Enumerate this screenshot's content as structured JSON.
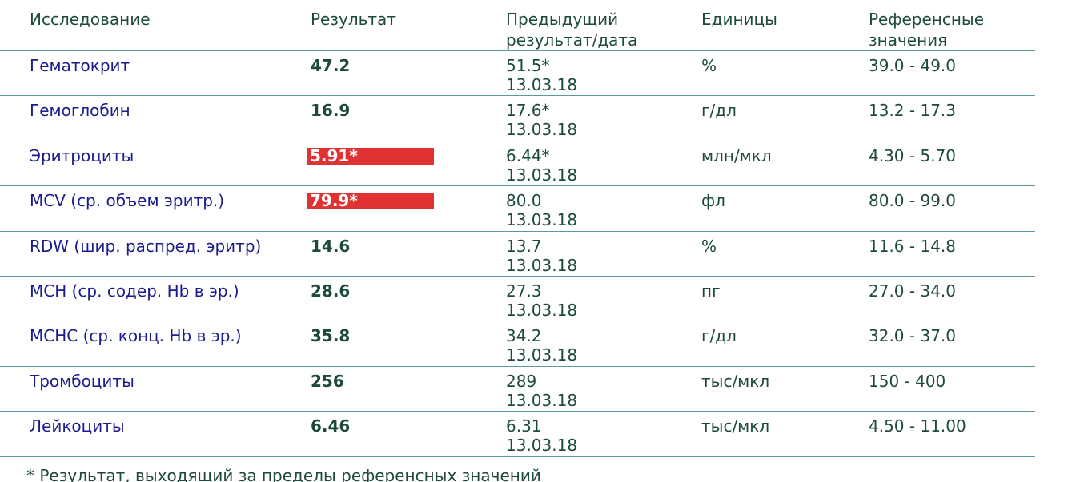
{
  "header": [
    [
      "Исследование"
    ],
    [
      "Результат"
    ],
    [
      "Предыдущий",
      "результат/дата"
    ],
    [
      "Единицы"
    ],
    [
      "Референсные",
      "значения"
    ]
  ],
  "rows": [
    {
      "name": "Гематокрит",
      "result": "47.2",
      "flagged": false,
      "prev": "51.5*",
      "date": "13.03.18",
      "units": "%",
      "ref": "39.0 - 49.0"
    },
    {
      "name": "Гемоглобин",
      "result": "16.9",
      "flagged": false,
      "prev": "17.6*",
      "date": "13.03.18",
      "units": "г/дл",
      "ref": "13.2 - 17.3"
    },
    {
      "name": "Эритроциты",
      "result": "5.91*",
      "flagged": true,
      "prev": "6.44*",
      "date": "13.03.18",
      "units": "млн/мкл",
      "ref": "4.30 - 5.70"
    },
    {
      "name": "MCV (ср. объем эритр.)",
      "result": "79.9*",
      "flagged": true,
      "prev": "80.0",
      "date": "13.03.18",
      "units": "фл",
      "ref": "80.0 - 99.0"
    },
    {
      "name": "RDW (шир. распред. эритр)",
      "result": "14.6",
      "flagged": false,
      "prev": "13.7",
      "date": "13.03.18",
      "units": "%",
      "ref": "11.6 - 14.8"
    },
    {
      "name": "MCH (ср. содер. Hb в эр.)",
      "result": "28.6",
      "flagged": false,
      "prev": "27.3",
      "date": "13.03.18",
      "units": "пг",
      "ref": "27.0 - 34.0"
    },
    {
      "name": "MCHC (ср. конц. Hb в эр.)",
      "result": "35.8",
      "flagged": false,
      "prev": "34.2",
      "date": "13.03.18",
      "units": "г/дл",
      "ref": "32.0 - 37.0"
    },
    {
      "name": "Тромбоциты",
      "result": "256",
      "flagged": false,
      "prev": "289",
      "date": "13.03.18",
      "units": "тыс/мкл",
      "ref": "150 - 400"
    },
    {
      "name": "Лейкоциты",
      "result": "6.46",
      "flagged": false,
      "prev": "6.31",
      "date": "13.03.18",
      "units": "тыс/мкл",
      "ref": "4.50 - 11.00"
    }
  ],
  "footnote": "* Результат, выходящий за пределы референсных значений"
}
